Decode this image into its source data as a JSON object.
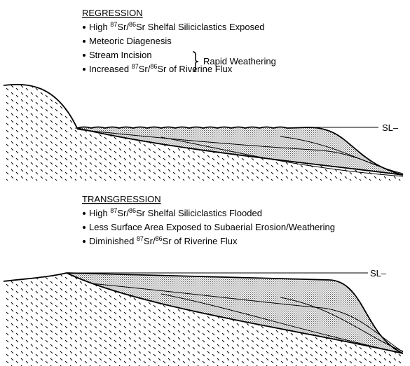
{
  "regression": {
    "title": "REGRESSION",
    "bullets": [
      {
        "pre": "High ",
        "iso1": "87",
        "mid": "Sr/",
        "iso2": "86",
        "post": "Sr Shelfal Siliciclastics Exposed"
      },
      {
        "text": "Meteoric Diagenesis"
      },
      {
        "text": "Stream Incision"
      },
      {
        "pre": "Increased ",
        "iso1": "87",
        "mid": "Sr/",
        "iso2": "86",
        "post": "Sr of Riverine Flux"
      }
    ],
    "brace_label": "Rapid Weathering",
    "sea_level": "SL–"
  },
  "transgression": {
    "title": "TRANSGRESSION",
    "bullets": [
      {
        "pre": "High ",
        "iso1": "87",
        "mid": "Sr/",
        "iso2": "86",
        "post": "Sr Shelfal Siliciclastics Flooded"
      },
      {
        "text": "Less Surface Area Exposed to Subaerial Erosion/Weathering"
      },
      {
        "pre": "Diminished ",
        "iso1": "87",
        "mid": "Sr/",
        "iso2": "86",
        "post": "Sr of Riverine Flux"
      }
    ],
    "sea_level": "SL–"
  }
}
